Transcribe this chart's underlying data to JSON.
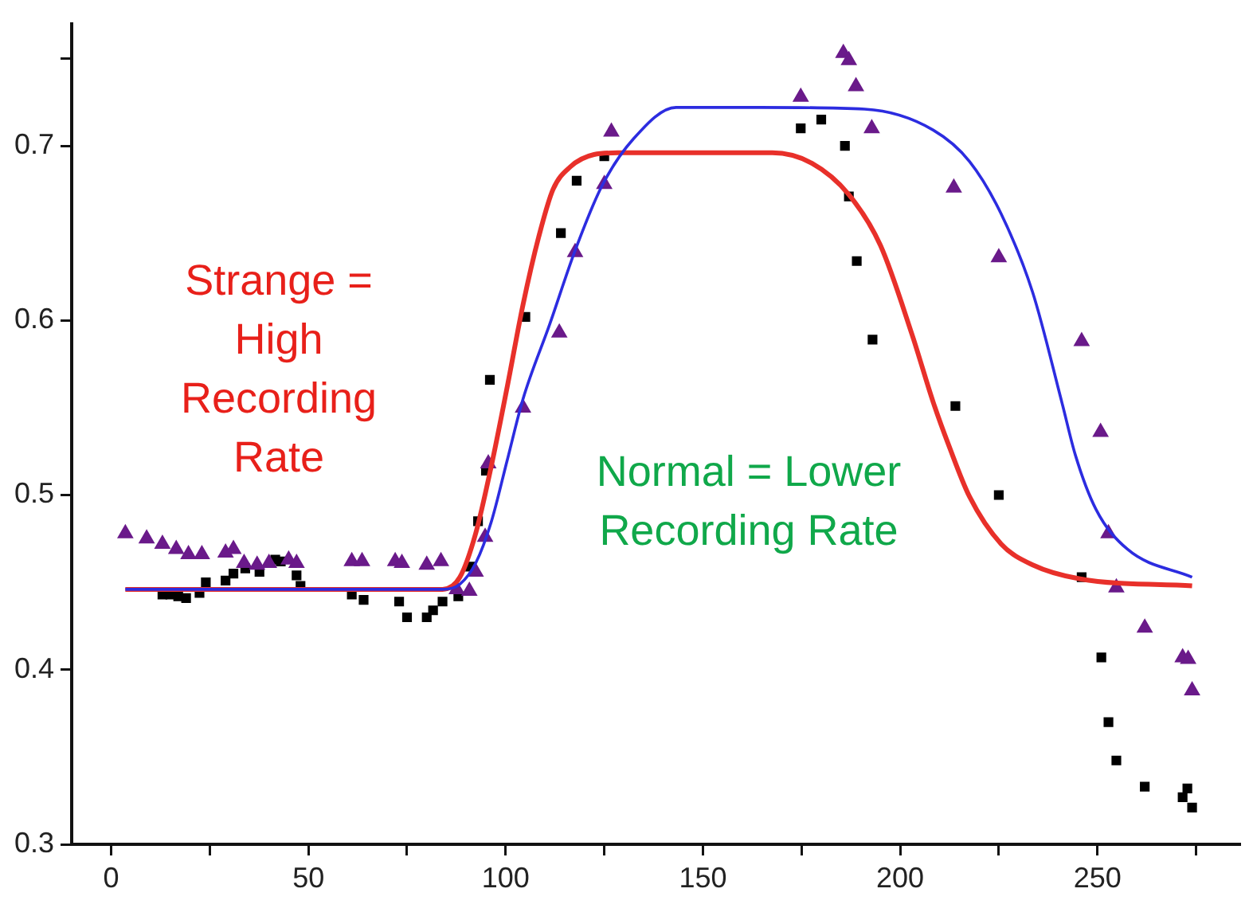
{
  "chart_data": {
    "type": "scatter",
    "xlim": [
      -10,
      286
    ],
    "ylim": [
      0.3,
      0.77
    ],
    "xticks": [
      0,
      {
        "value": 25,
        "label": null
      },
      50,
      {
        "value": 75,
        "label": null
      },
      100,
      {
        "value": 125,
        "label": null
      },
      150,
      {
        "value": 175,
        "label": null
      },
      200,
      {
        "value": 225,
        "label": null
      },
      250,
      {
        "value": 275,
        "label": null
      }
    ],
    "yticks": [
      0.3,
      0.4,
      0.5,
      0.6,
      0.7,
      {
        "value": 0.75,
        "label": null
      }
    ],
    "grid": false,
    "legend": false,
    "annotations": [
      "Strange = High Recording Rate",
      "Normal = Lower Recording Rate"
    ],
    "series": [
      {
        "type": "scatter",
        "color": "#000000",
        "marker": "square",
        "x": [
          13,
          15,
          17,
          19,
          22.4,
          24,
          29,
          31,
          34,
          37.6,
          41.6,
          43,
          47,
          48,
          61,
          64,
          73,
          75,
          80,
          81.6,
          84,
          88,
          91,
          93,
          95,
          96,
          105,
          114,
          118,
          125,
          174.8,
          180,
          186,
          187,
          189,
          193,
          214,
          225,
          246,
          251,
          252.8,
          254.8,
          262,
          272.8,
          271.6,
          274
        ],
        "values": [
          0.443,
          0.443,
          0.442,
          0.441,
          0.444,
          0.45,
          0.451,
          0.455,
          0.458,
          0.456,
          0.463,
          0.462,
          0.454,
          0.448,
          0.443,
          0.44,
          0.439,
          0.43,
          0.43,
          0.434,
          0.439,
          0.442,
          0.459,
          0.485,
          0.514,
          0.566,
          0.602,
          0.65,
          0.68,
          0.694,
          0.71,
          0.715,
          0.7,
          0.671,
          0.634,
          0.589,
          0.551,
          0.5,
          0.453,
          0.407,
          0.37,
          0.348,
          0.333,
          0.332,
          0.327,
          0.321
        ]
      },
      {
        "type": "scatter",
        "color": "#6a1a8a",
        "marker": "triangle",
        "x": [
          3.6,
          9,
          13,
          16.5,
          19.6,
          23,
          29,
          31,
          33.7,
          37,
          40,
          45,
          47,
          61,
          63.6,
          72,
          73.7,
          80,
          83.6,
          87.6,
          90.8,
          92.4,
          94.8,
          95.6,
          104.4,
          113.6,
          117.6,
          125,
          126.8,
          174.8,
          185.6,
          187,
          188.8,
          192.8,
          213.6,
          225,
          246,
          250.8,
          252.8,
          254.8,
          262,
          271.6,
          273,
          274
        ],
        "values": [
          0.478,
          0.475,
          0.472,
          0.469,
          0.466,
          0.466,
          0.467,
          0.469,
          0.461,
          0.46,
          0.461,
          0.463,
          0.461,
          0.462,
          0.462,
          0.462,
          0.461,
          0.46,
          0.462,
          0.446,
          0.445,
          0.456,
          0.476,
          0.518,
          0.55,
          0.593,
          0.639,
          0.678,
          0.708,
          0.728,
          0.753,
          0.749,
          0.734,
          0.71,
          0.676,
          0.636,
          0.588,
          0.536,
          0.478,
          0.447,
          0.424,
          0.407,
          0.406,
          0.388
        ]
      },
      {
        "type": "line",
        "color": "#e8302a",
        "marker": "none",
        "x": [
          3.6,
          84,
          88.4,
          92.4,
          96.4,
          100.4,
          104.4,
          108.4,
          112,
          116.4,
          122.4,
          128.4,
          167.6,
          177.6,
          187,
          195,
          203,
          208.4,
          212.4,
          217.6,
          225.6,
          233.6,
          245.6,
          274
        ],
        "values": [
          0.446,
          0.446,
          0.453,
          0.478,
          0.517,
          0.562,
          0.609,
          0.648,
          0.675,
          0.688,
          0.695,
          0.696,
          0.696,
          0.69,
          0.672,
          0.643,
          0.592,
          0.553,
          0.528,
          0.499,
          0.472,
          0.46,
          0.452,
          0.448
        ]
      },
      {
        "type": "line",
        "color": "#2c2ce0",
        "marker": "none",
        "x": [
          3.6,
          84,
          88.4,
          92.4,
          96.4,
          100.4,
          104.4,
          111.2,
          117.6,
          124.4,
          132.4,
          143.2,
          164.4,
          191,
          208.4,
          217.6,
          225.6,
          233.6,
          241,
          244.4,
          249.6,
          257.6,
          274
        ],
        "values": [
          0.446,
          0.446,
          0.449,
          0.461,
          0.485,
          0.52,
          0.555,
          0.598,
          0.64,
          0.677,
          0.704,
          0.722,
          0.722,
          0.721,
          0.709,
          0.691,
          0.661,
          0.616,
          0.553,
          0.523,
          0.492,
          0.469,
          0.453
        ]
      }
    ]
  }
}
